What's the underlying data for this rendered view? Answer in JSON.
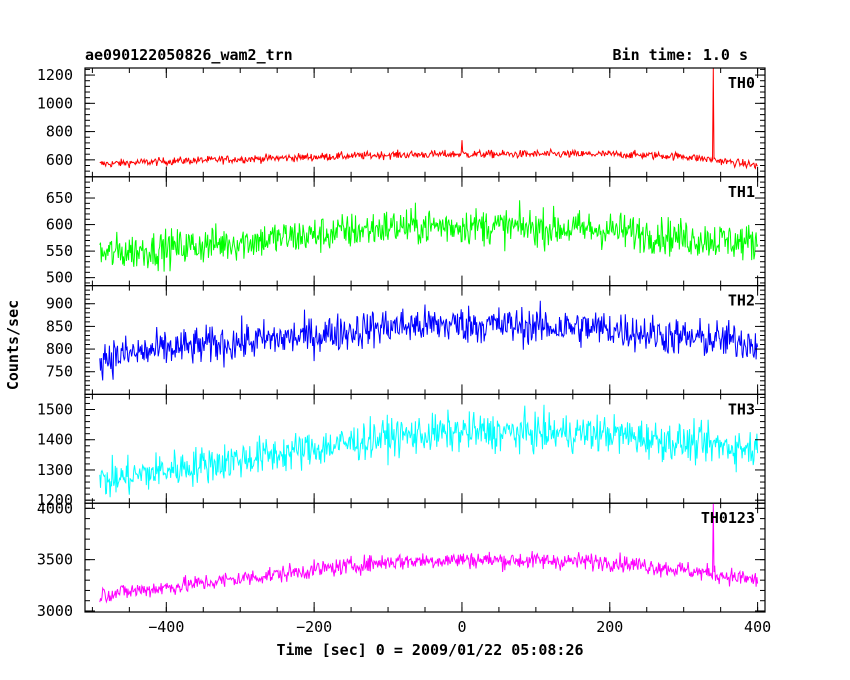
{
  "chart_data": {
    "type": "line",
    "title": "ae090122050826_wam2_trn",
    "bin_time": "Bin time: 1.0 s",
    "xlabel": "Time [sec] 0 = 2009/01/22 05:08:26",
    "ylabel": "Counts/sec",
    "xlim": [
      -510,
      410
    ],
    "x_ticks": [
      "−400",
      "−200",
      "0",
      "200",
      "400"
    ],
    "x_tick_values": [
      -400,
      -200,
      0,
      200,
      400
    ],
    "panels": [
      {
        "name": "TH0",
        "color": "#ff0000",
        "ylim": [
          480,
          1250
        ],
        "y_ticks": [
          "600",
          "800",
          "1000",
          "1200"
        ],
        "y_tick_values": [
          600,
          800,
          1000,
          1200
        ],
        "profile": [
          [
            -490,
            570
          ],
          [
            -400,
            590
          ],
          [
            -200,
            620
          ],
          [
            -100,
            635
          ],
          [
            0,
            640
          ],
          [
            200,
            640
          ],
          [
            300,
            625
          ],
          [
            400,
            560
          ]
        ],
        "noise": 20,
        "spikes": [
          {
            "x": 340,
            "y": 1250
          },
          {
            "x": 0,
            "y": 740
          }
        ]
      },
      {
        "name": "TH1",
        "color": "#00ff00",
        "ylim": [
          485,
          690
        ],
        "y_ticks": [
          "500",
          "550",
          "600",
          "650"
        ],
        "y_tick_values": [
          500,
          550,
          600,
          650
        ],
        "profile": [
          [
            -490,
            545
          ],
          [
            -400,
            555
          ],
          [
            -200,
            580
          ],
          [
            -100,
            595
          ],
          [
            0,
            598
          ],
          [
            200,
            590
          ],
          [
            300,
            575
          ],
          [
            400,
            565
          ]
        ],
        "noise": 25,
        "spikes": []
      },
      {
        "name": "TH2",
        "color": "#0000ff",
        "ylim": [
          700,
          940
        ],
        "y_ticks": [
          "750",
          "800",
          "850",
          "900"
        ],
        "y_tick_values": [
          750,
          800,
          850,
          900
        ],
        "profile": [
          [
            -490,
            780
          ],
          [
            -400,
            800
          ],
          [
            -200,
            830
          ],
          [
            -100,
            850
          ],
          [
            0,
            855
          ],
          [
            200,
            845
          ],
          [
            300,
            825
          ],
          [
            400,
            815
          ]
        ],
        "noise": 30,
        "spikes": []
      },
      {
        "name": "TH3",
        "color": "#00ffff",
        "ylim": [
          1190,
          1550
        ],
        "y_ticks": [
          "1200",
          "1300",
          "1400",
          "1500"
        ],
        "y_tick_values": [
          1200,
          1300,
          1400,
          1500
        ],
        "profile": [
          [
            -490,
            1260
          ],
          [
            -400,
            1300
          ],
          [
            -200,
            1370
          ],
          [
            -100,
            1410
          ],
          [
            0,
            1425
          ],
          [
            200,
            1420
          ],
          [
            300,
            1390
          ],
          [
            400,
            1370
          ]
        ],
        "noise": 45,
        "spikes": []
      },
      {
        "name": "TH0123",
        "color": "#ff00ff",
        "ylim": [
          2990,
          4050
        ],
        "y_ticks": [
          "3000",
          "3500",
          "4000"
        ],
        "y_tick_values": [
          3000,
          3500,
          4000
        ],
        "profile": [
          [
            -490,
            3160
          ],
          [
            -400,
            3230
          ],
          [
            -200,
            3400
          ],
          [
            -100,
            3480
          ],
          [
            0,
            3500
          ],
          [
            200,
            3480
          ],
          [
            300,
            3400
          ],
          [
            400,
            3300
          ]
        ],
        "noise": 60,
        "spikes": [
          {
            "x": 340,
            "y": 4050
          }
        ]
      }
    ]
  }
}
